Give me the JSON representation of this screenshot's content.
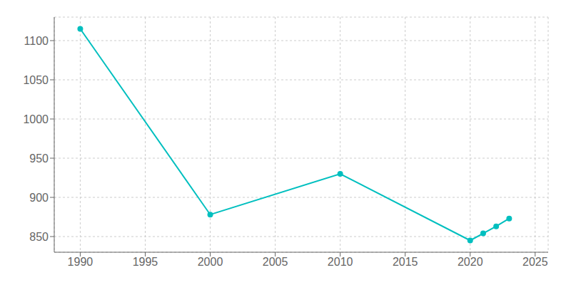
{
  "chart_data": {
    "type": "line",
    "x": [
      1990,
      2000,
      2010,
      2020,
      2021,
      2022,
      2023
    ],
    "values": [
      1115,
      878,
      930,
      845,
      854,
      863,
      873
    ],
    "color": "#00BFBF",
    "marker": "circle",
    "xlim": [
      1988,
      2026
    ],
    "ylim": [
      830,
      1130
    ],
    "xticks": [
      1990,
      1995,
      2000,
      2005,
      2010,
      2015,
      2020,
      2025
    ],
    "yticks": [
      850,
      900,
      950,
      1000,
      1050,
      1100
    ],
    "grid": true
  }
}
